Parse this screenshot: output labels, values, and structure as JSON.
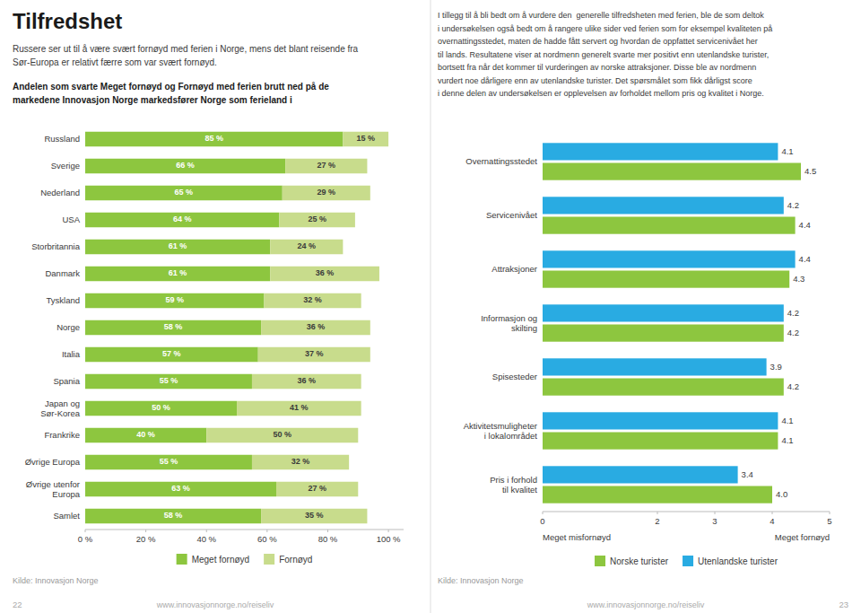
{
  "chart_data": [
    {
      "type": "bar",
      "orientation": "horizontal",
      "stacked": true,
      "title": "Tilfredshet",
      "subtitle": "Russere ser ut til å være svært fornøyd med ferien i Norge, mens det blant reisende fra\nSør-Europa er relativt færre som var svært fornøyd.",
      "annotations": [
        "Andelen som svarte Meget fornøyd og Fornøyd med ferien brutt ned på de\nmarkedene Innovasjon Norge markedsfører Norge som ferieland i",
        "Kilde: Innovasjon Norge",
        "www.innovasjonnorge.no/reiseliv",
        "22"
      ],
      "categories": [
        "Russland",
        "Sverige",
        "Nederland",
        "USA",
        "Storbritannia",
        "Danmark",
        "Tyskland",
        "Norge",
        "Italia",
        "Spania",
        "Japan og\nSør-Korea",
        "Frankrike",
        "Øvrige Europa",
        "Øvrige utenfor\nEuropa",
        "Samlet"
      ],
      "series": [
        {
          "name": "Meget fornøyd",
          "color": "#8dc63f",
          "values": [
            85,
            66,
            65,
            64,
            61,
            61,
            59,
            58,
            57,
            55,
            50,
            40,
            55,
            63,
            58
          ],
          "value_labels": [
            "85 %",
            "66 %",
            "65 %",
            "64 %",
            "61 %",
            "61 %",
            "59 %",
            "58 %",
            "57 %",
            "55 %",
            "50 %",
            "40 %",
            "55 %",
            "63 %",
            "58 %"
          ]
        },
        {
          "name": "Fornøyd",
          "color": "#c8dc8c",
          "values": [
            15,
            27,
            29,
            25,
            24,
            36,
            32,
            36,
            37,
            36,
            41,
            50,
            32,
            27,
            35
          ],
          "value_labels": [
            "15 %",
            "27 %",
            "29 %",
            "25 %",
            "24 %",
            "36 %",
            "32 %",
            "36 %",
            "37 %",
            "36 %",
            "41 %",
            "50 %",
            "32 %",
            "27 %",
            "35 %"
          ]
        }
      ],
      "xlim": [
        0,
        105
      ],
      "xticks": [
        {
          "value": 0,
          "label": "0 %"
        },
        {
          "value": 20,
          "label": "20 %"
        },
        {
          "value": 40,
          "label": "40 %"
        },
        {
          "value": 60,
          "label": "60 %"
        },
        {
          "value": 80,
          "label": "80 %"
        },
        {
          "value": 100,
          "label": "100 %"
        }
      ],
      "grid": false,
      "legend": "bottom",
      "data_labels": true
    },
    {
      "type": "bar",
      "orientation": "horizontal",
      "stacked": false,
      "subtitle": "I tillegg til å bli bedt om å vurdere den  generelle tilfredsheten med ferien, ble de som deltok\ni undersøkelsen også bedt om å rangere ulike sider ved ferien som for eksempel kvaliteten på\novernattingsstedet, maten de hadde fått servert og hvordan de oppfattet servicenivået her\ntil lands. Resultatene viser at nordmenn generelt svarte mer positivt enn utenlandske turister,\nbortsett fra når det kommer til vurderingen av norske attraksjoner. Disse ble av nordmenn\nvurdert noe dårligere enn av utenlandske turister. Det spørsmålet som fikk dårligst score\ni denne delen av undersøkelsen er opplevelsen av forholdet mellom pris og kvalitet i Norge.",
      "annotations": [
        "Meget misfornøyd",
        "Meget fornøyd",
        "Kilde: Innovasjon Norge",
        "www.innovasjonnorge.no/reiseliv",
        "23"
      ],
      "categories": [
        "Overnattingsstedet",
        "Servicenivået",
        "Attraksjoner",
        "Informasjon og\nskilting",
        "Spisesteder",
        "Aktivitetsmuligheter\ni lokalområdet",
        "Pris i forhold\ntil kvalitet"
      ],
      "series": [
        {
          "name": "Norske turister",
          "color": "#8dc63f",
          "values": [
            4.5,
            4.4,
            4.3,
            4.2,
            4.2,
            4.1,
            4.0
          ],
          "value_labels": [
            "4.5",
            "4.4",
            "4.3",
            "4.2",
            "4.2",
            "4.1",
            "4.0"
          ]
        },
        {
          "name": "Utenlandske turister",
          "color": "#29abe2",
          "values": [
            4.1,
            4.2,
            4.4,
            4.2,
            3.9,
            4.1,
            3.4
          ],
          "value_labels": [
            "4.1",
            "4.2",
            "4.4",
            "4.2",
            "3.9",
            "4.1",
            "3.4"
          ]
        }
      ],
      "xlim": [
        0,
        5
      ],
      "xticks": [
        0,
        2,
        3,
        4,
        5
      ],
      "grid": false,
      "legend": "bottom",
      "data_labels": true
    }
  ]
}
